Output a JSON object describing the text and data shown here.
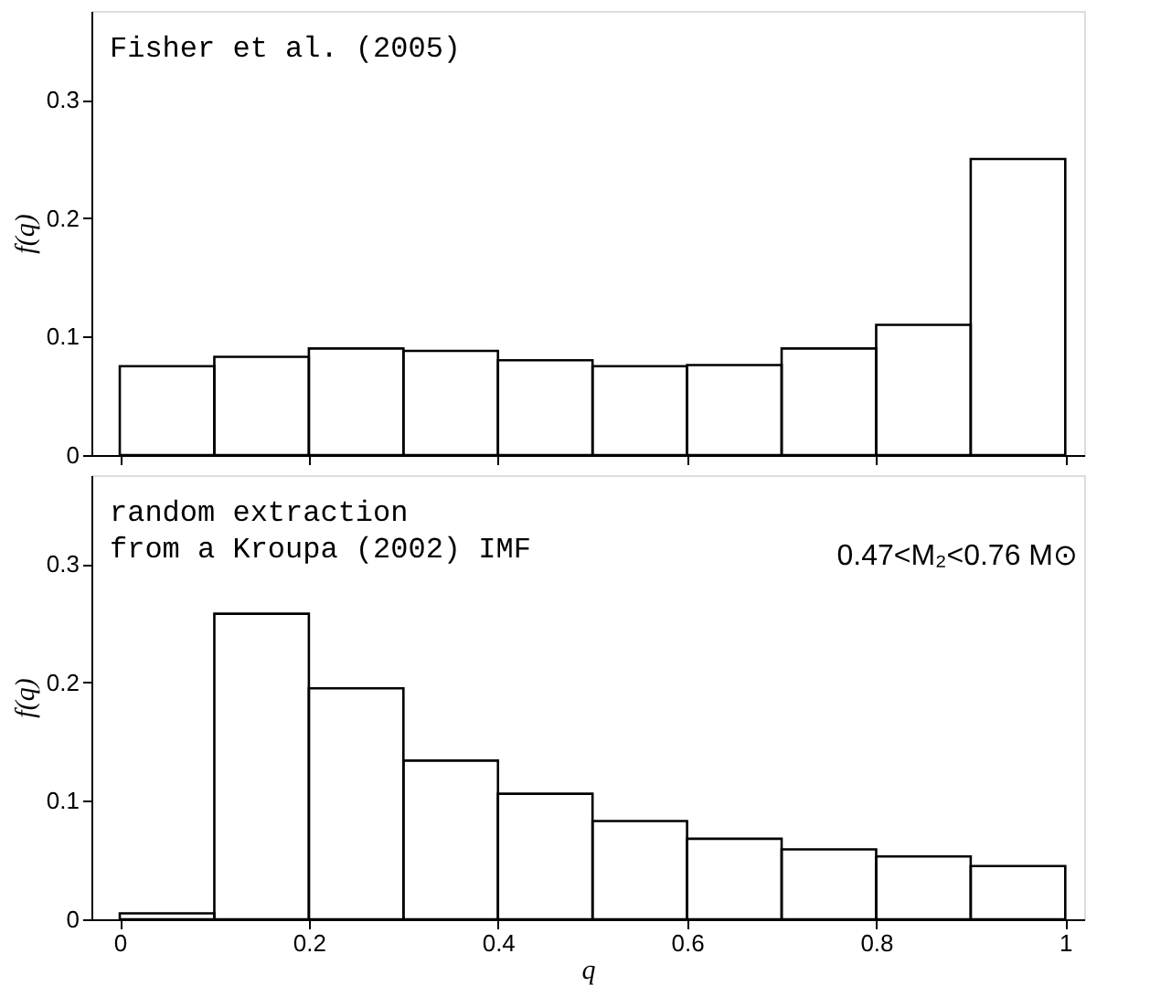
{
  "chart_data": [
    {
      "type": "histogram",
      "ylabel": "f(q)",
      "bins": [
        0,
        0.1,
        0.2,
        0.3,
        0.4,
        0.5,
        0.6,
        0.7,
        0.8,
        0.9,
        1.0
      ],
      "values": [
        0.075,
        0.083,
        0.09,
        0.088,
        0.08,
        0.075,
        0.076,
        0.09,
        0.11,
        0.25
      ],
      "color": "#000000",
      "xlim": [
        -0.03,
        1.02
      ],
      "ylim": [
        0,
        0.375
      ],
      "xticks": [
        0,
        0.2,
        0.4,
        0.6,
        0.8,
        1
      ],
      "yticks": [
        0,
        0.1,
        0.2,
        0.3
      ],
      "tick_labels": "y",
      "annotations": [
        "Fisher et al. (2005)"
      ]
    },
    {
      "type": "histogram",
      "xlabel": "q",
      "ylabel": "f(q)",
      "bins": [
        0,
        0.1,
        0.2,
        0.3,
        0.4,
        0.5,
        0.6,
        0.7,
        0.8,
        0.9,
        1.0
      ],
      "values": [
        0.005,
        0.258,
        0.195,
        0.134,
        0.106,
        0.083,
        0.068,
        0.059,
        0.053,
        0.045
      ],
      "color": "#000000",
      "xlim": [
        -0.03,
        1.02
      ],
      "ylim": [
        0,
        0.375
      ],
      "xticks": [
        0,
        0.2,
        0.4,
        0.6,
        0.8,
        1
      ],
      "yticks": [
        0,
        0.1,
        0.2,
        0.3
      ],
      "annotations": [
        "random extraction\nfrom a Kroupa (2002) IMF",
        "0.47<M₂<0.76 M⊙"
      ]
    }
  ]
}
